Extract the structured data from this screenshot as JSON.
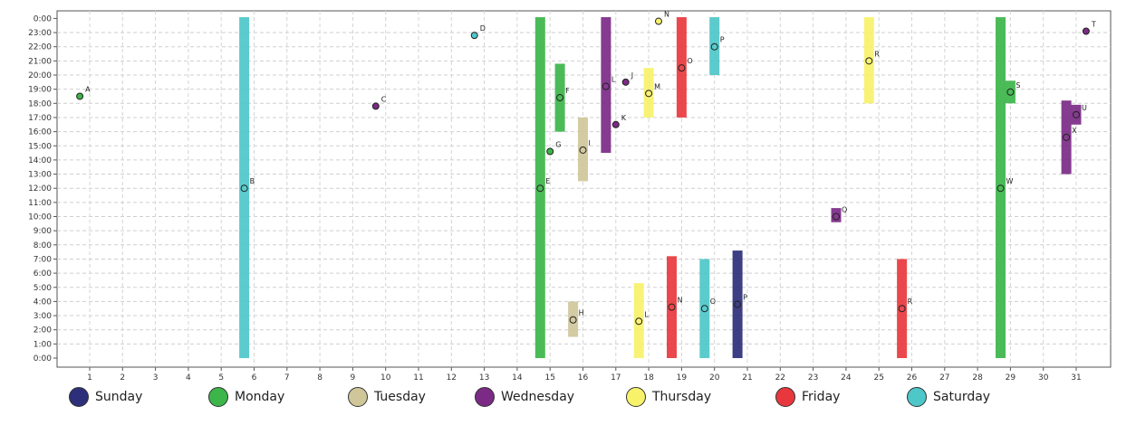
{
  "chart_data": {
    "type": "scatter",
    "title": "",
    "xlabel": "",
    "ylabel": "",
    "x_range": [
      0,
      32
    ],
    "y_range": [
      0,
      24
    ],
    "grid": true,
    "legend_position": "bottom",
    "x_ticks": [
      "1",
      "2",
      "3",
      "4",
      "5",
      "6",
      "7",
      "8",
      "9",
      "10",
      "11",
      "12",
      "13",
      "14",
      "15",
      "16",
      "17",
      "18",
      "19",
      "20",
      "21",
      "22",
      "23",
      "24",
      "25",
      "26",
      "27",
      "28",
      "29",
      "30",
      "31"
    ],
    "y_ticks": [
      "0:00",
      "1:00",
      "2:00",
      "3:00",
      "4:00",
      "5:00",
      "6:00",
      "7:00",
      "8:00",
      "9:00",
      "10:00",
      "11:00",
      "12:00",
      "13:00",
      "14:00",
      "15:00",
      "16:00",
      "17:00",
      "18:00",
      "19:00",
      "20:00",
      "21:00",
      "22:00",
      "23:00",
      "0:00"
    ],
    "series": [
      {
        "name": "Sunday",
        "color": "#2d2f7a"
      },
      {
        "name": "Monday",
        "color": "#3cb54a"
      },
      {
        "name": "Tuesday",
        "color": "#cfc79a"
      },
      {
        "name": "Wednesday",
        "color": "#7b2a85"
      },
      {
        "name": "Thursday",
        "color": "#f7f26a"
      },
      {
        "name": "Friday",
        "color": "#e8383d"
      },
      {
        "name": "Saturday",
        "color": "#4ec7c9"
      }
    ],
    "bars": [
      {
        "label": "B",
        "day": "Saturday",
        "x": 5.7,
        "start": 0,
        "end": 24,
        "point": 12
      },
      {
        "label": "E",
        "day": "Monday",
        "x": 14.7,
        "start": 0,
        "end": 24,
        "point": 12
      },
      {
        "label": "F",
        "day": "Monday",
        "x": 15.3,
        "start": 16.0,
        "end": 20.8,
        "point": 18.4
      },
      {
        "label": "H",
        "day": "Tuesday",
        "x": 15.7,
        "start": 1.5,
        "end": 4.0,
        "point": 2.7
      },
      {
        "label": "I",
        "day": "Tuesday",
        "x": 16.0,
        "start": 12.5,
        "end": 17.0,
        "point": 14.7
      },
      {
        "label": "L",
        "day": "Wednesday",
        "x": 16.7,
        "start": 14.5,
        "end": 24,
        "point": 19.2
      },
      {
        "label": "L",
        "day": "Thursday",
        "x": 17.7,
        "start": 0,
        "end": 5.3,
        "point": 2.6
      },
      {
        "label": "M",
        "day": "Thursday",
        "x": 18.0,
        "start": 17.0,
        "end": 20.5,
        "point": 18.7
      },
      {
        "label": "N",
        "day": "Friday",
        "x": 18.7,
        "start": 0,
        "end": 7.2,
        "point": 3.6
      },
      {
        "label": "O",
        "day": "Friday",
        "x": 19.0,
        "start": 17.0,
        "end": 24,
        "point": 20.5
      },
      {
        "label": "O",
        "day": "Saturday",
        "x": 19.7,
        "start": 0,
        "end": 7.0,
        "point": 3.5
      },
      {
        "label": "P",
        "day": "Saturday",
        "x": 20.0,
        "start": 20.0,
        "end": 24,
        "point": 22.0
      },
      {
        "label": "P",
        "day": "Sunday",
        "x": 20.7,
        "start": 0,
        "end": 7.6,
        "point": 3.8
      },
      {
        "label": "Q",
        "day": "Wednesday",
        "x": 23.7,
        "start": 9.6,
        "end": 10.6,
        "point": 10.0
      },
      {
        "label": "R",
        "day": "Thursday",
        "x": 24.7,
        "start": 18.0,
        "end": 24,
        "point": 21.0
      },
      {
        "label": "R",
        "day": "Friday",
        "x": 25.7,
        "start": 0,
        "end": 7.0,
        "point": 3.5
      },
      {
        "label": "W",
        "day": "Monday",
        "x": 28.7,
        "start": 0,
        "end": 24,
        "point": 12.0
      },
      {
        "label": "S",
        "day": "Monday",
        "x": 29.0,
        "start": 18.0,
        "end": 19.6,
        "point": 18.8
      },
      {
        "label": "X",
        "day": "Wednesday",
        "x": 30.7,
        "start": 13.0,
        "end": 18.2,
        "point": 15.6
      },
      {
        "label": "U",
        "day": "Wednesday",
        "x": 31.0,
        "start": 16.5,
        "end": 17.9,
        "point": 17.2
      }
    ],
    "points": [
      {
        "label": "A",
        "day": "Monday",
        "x": 0.7,
        "y": 18.5
      },
      {
        "label": "C",
        "day": "Wednesday",
        "x": 9.7,
        "y": 17.8
      },
      {
        "label": "D",
        "day": "Saturday",
        "x": 12.7,
        "y": 22.8
      },
      {
        "label": "G",
        "day": "Monday",
        "x": 15.0,
        "y": 14.6
      },
      {
        "label": "K",
        "day": "Wednesday",
        "x": 17.0,
        "y": 16.5
      },
      {
        "label": "J",
        "day": "Wednesday",
        "x": 17.3,
        "y": 19.5
      },
      {
        "label": "N",
        "day": "Thursday",
        "x": 18.3,
        "y": 23.8
      },
      {
        "label": "T",
        "day": "Wednesday",
        "x": 31.3,
        "y": 23.1
      }
    ]
  }
}
